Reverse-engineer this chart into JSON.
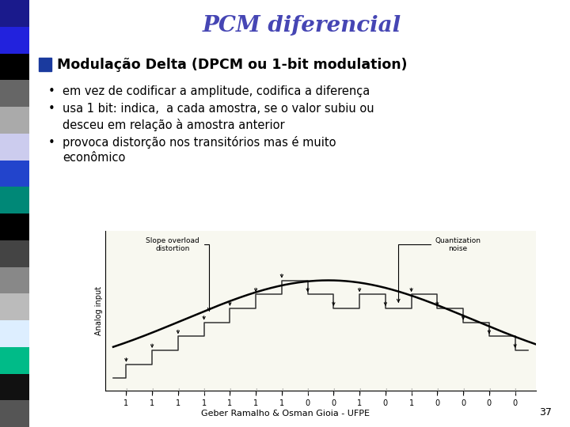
{
  "title": "PCM diferencial",
  "title_color": "#4646B4",
  "title_style": "italic",
  "title_fontsize": 20,
  "bg_color": "#FFFFFF",
  "left_bar_colors": [
    "#1a1a8c",
    "#2222dd",
    "#000000",
    "#666666",
    "#aaaaaa",
    "#ccccee",
    "#2244cc",
    "#008877",
    "#000000",
    "#444444",
    "#888888",
    "#bbbbbb",
    "#ddeeff",
    "#00bb88",
    "#111111",
    "#555555"
  ],
  "heading": "Modulação Delta (DPCM ou 1-bit modulation)",
  "heading_fontsize": 12.5,
  "heading_color": "#000000",
  "bullet1": "em vez de codificar a amplitude, codifica a diferença",
  "bullet2": "usa 1 bit: indica,  a cada amostra, se o valor subiu ou\n     desceu em relação à amostra anterior",
  "bullet3": "provoca distorção nos transitórios mas é muito\n     econômico",
  "bullet_fontsize": 10.5,
  "footer": "Geber Ramalho & Osman Gioia - UFPE",
  "footer_fontsize": 8,
  "page_number": "37",
  "ylabel": "Analog input",
  "annotation1": "Slope overload\ndistortion",
  "annotation2": "Quantization\nnoise",
  "bits": [
    "1",
    "1",
    "1",
    "1",
    "1",
    "1",
    "1",
    "0",
    "0",
    "1",
    "0",
    "1",
    "0",
    "0",
    "0",
    "0"
  ]
}
